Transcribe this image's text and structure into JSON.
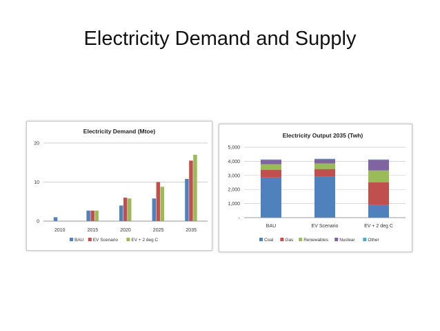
{
  "slide": {
    "title": "Electricity Demand and Supply"
  },
  "chart_data": [
    {
      "type": "bar",
      "title": "Electricity Demand (Mtoe)",
      "xlabel": "",
      "ylabel": "",
      "categories": [
        "2010",
        "2015",
        "2020",
        "2025",
        "2035"
      ],
      "series": [
        {
          "name": "BAU",
          "color": "#4f81bd",
          "values": [
            1.0,
            2.7,
            4.0,
            5.8,
            10.8
          ]
        },
        {
          "name": "EV Scenario",
          "color": "#c0504d",
          "values": [
            null,
            2.7,
            6.0,
            10.0,
            15.5
          ]
        },
        {
          "name": "EV + 2 deg C",
          "color": "#9bbb59",
          "values": [
            null,
            2.7,
            5.8,
            8.8,
            17.0
          ]
        }
      ],
      "ylim": [
        0,
        20
      ],
      "yticks": [
        "0",
        "10",
        "20"
      ],
      "grid": true,
      "legend": "bottom"
    },
    {
      "type": "bar",
      "stacked": true,
      "title": "Electricity Output 2035 (Twh)",
      "xlabel": "",
      "ylabel": "",
      "categories": [
        "BAU",
        "EV Scenario",
        "EV + 2 deg C"
      ],
      "series": [
        {
          "name": "Coal",
          "color": "#4f81bd",
          "values": [
            2850,
            2900,
            900
          ]
        },
        {
          "name": "Gas",
          "color": "#c0504d",
          "values": [
            550,
            550,
            1600
          ]
        },
        {
          "name": "Renewables",
          "color": "#9bbb59",
          "values": [
            400,
            400,
            850
          ]
        },
        {
          "name": "Nuclear",
          "color": "#8064a2",
          "values": [
            300,
            300,
            750
          ]
        },
        {
          "name": "Other",
          "color": "#4bacc6",
          "values": [
            30,
            30,
            30
          ]
        }
      ],
      "ylim": [
        0,
        5000
      ],
      "yticks": [
        "-",
        "1,000",
        "2,000",
        "3,000",
        "4,000",
        "5,000"
      ],
      "grid": true,
      "legend": "bottom"
    }
  ]
}
